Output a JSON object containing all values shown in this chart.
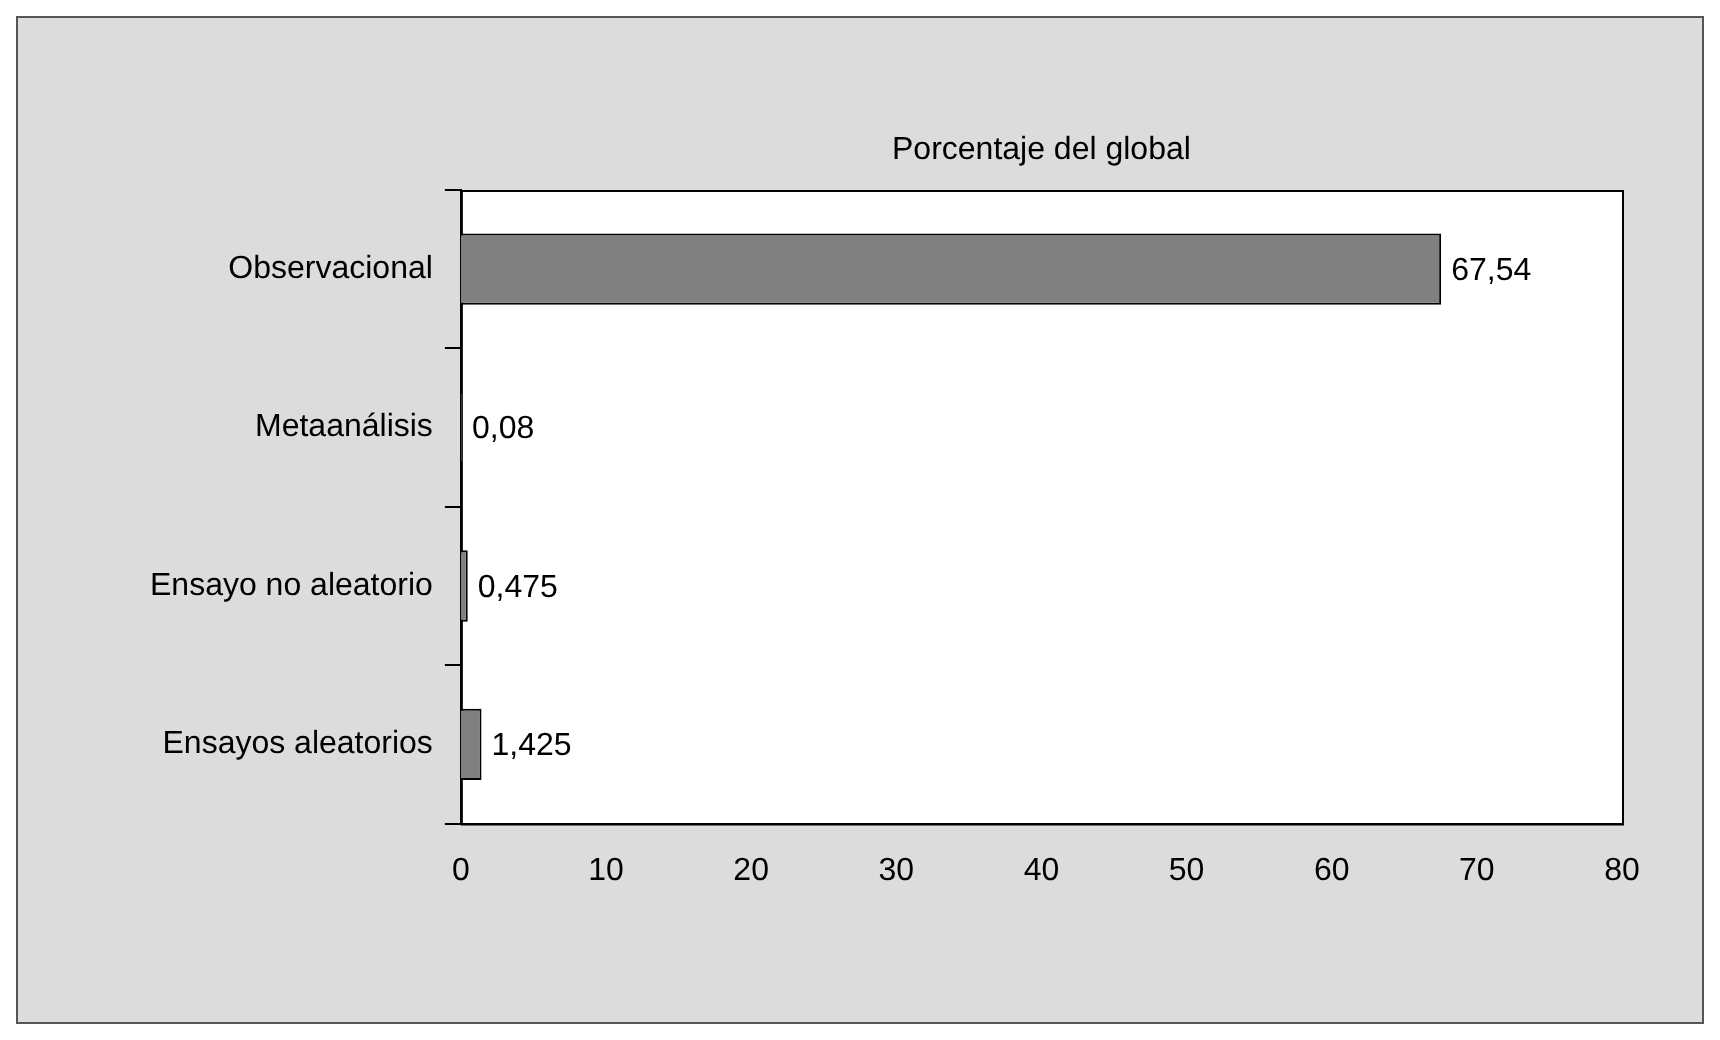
{
  "chart_data": {
    "type": "bar",
    "orientation": "horizontal",
    "title": "Porcentaje del global",
    "categories": [
      "Observacional",
      "Metaanálisis",
      "Ensayo no aleatorio",
      "Ensayos aleatorios"
    ],
    "values": [
      67.54,
      0.08,
      0.475,
      1.425
    ],
    "value_labels": [
      "67,54",
      "0,08",
      "0,475",
      "1,425"
    ],
    "color": "#808080",
    "xlim": [
      0,
      80
    ],
    "xticks": [
      0,
      10,
      20,
      30,
      40,
      50,
      60,
      70,
      80
    ],
    "grid": false,
    "legend": false
  }
}
